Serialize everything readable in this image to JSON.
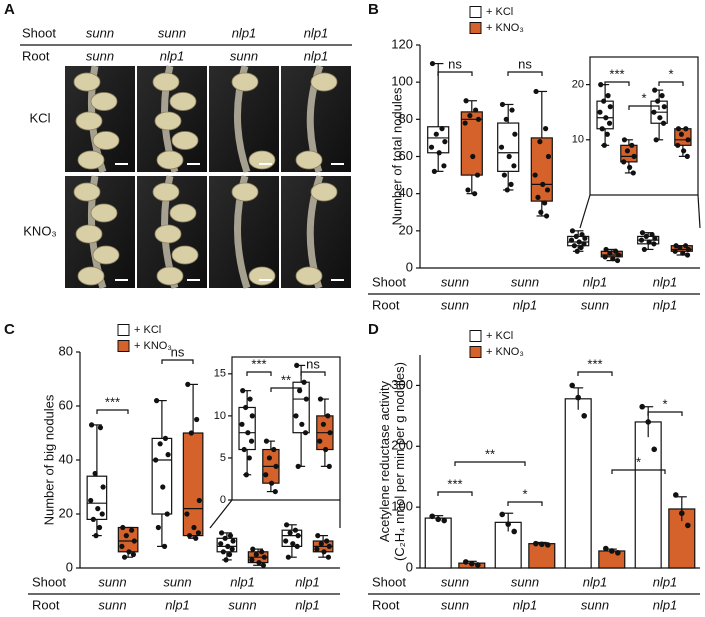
{
  "photo_panel": {
    "panel": "A",
    "row_labels": [
      "Shoot",
      "Root"
    ],
    "shoot": [
      "sunn",
      "sunn",
      "nlp1",
      "nlp1"
    ],
    "root": [
      "sunn",
      "nlp1",
      "sunn",
      "nlp1"
    ],
    "treatments": [
      "KCl",
      "KNO₃"
    ]
  },
  "chart_data": [
    {
      "type": "box",
      "panel": "B",
      "y_label": [
        "Number of total nodules"
      ],
      "row_labels": [
        "Shoot",
        "Root"
      ],
      "shoot": [
        "sunn",
        "sunn",
        "nlp1",
        "nlp1"
      ],
      "root": [
        "sunn",
        "nlp1",
        "sunn",
        "nlp1"
      ],
      "ylim": [
        0,
        120
      ],
      "yticks": [
        0,
        20,
        40,
        60,
        80,
        100,
        120
      ],
      "series": [
        {
          "name": "+ KCl",
          "color": "#ffffff",
          "boxes": [
            {
              "min": 52,
              "q1": 62,
              "median": 70,
              "q3": 76,
              "max": 110,
              "points": [
                110,
                75,
                72,
                68,
                65,
                62,
                55,
                52
              ]
            },
            {
              "min": 42,
              "q1": 52,
              "median": 62,
              "q3": 78,
              "max": 88,
              "points": [
                88,
                85,
                80,
                72,
                65,
                60,
                55,
                50,
                45,
                42
              ]
            },
            {
              "min": 9,
              "q1": 12,
              "median": 14,
              "q3": 17,
              "max": 20,
              "points": [
                20,
                18,
                17,
                16,
                15,
                14,
                13,
                12,
                11,
                9
              ]
            },
            {
              "min": 10,
              "q1": 13,
              "median": 15,
              "q3": 17,
              "max": 19,
              "points": [
                19,
                18,
                17,
                16,
                15,
                14,
                13,
                10
              ]
            }
          ]
        },
        {
          "name": "+ KNO₃",
          "color": "#d5622b",
          "boxes": [
            {
              "min": 40,
              "q1": 50,
              "median": 80,
              "q3": 84,
              "max": 90,
              "points": [
                90,
                85,
                82,
                80,
                78,
                60,
                50,
                42,
                40
              ]
            },
            {
              "min": 28,
              "q1": 36,
              "median": 45,
              "q3": 70,
              "max": 95,
              "points": [
                95,
                75,
                68,
                60,
                50,
                45,
                42,
                38,
                35,
                30,
                28
              ]
            },
            {
              "min": 4,
              "q1": 6,
              "median": 7,
              "q3": 9,
              "max": 10,
              "points": [
                10,
                9,
                8,
                7,
                6,
                5,
                4
              ]
            },
            {
              "min": 7,
              "q1": 9,
              "median": 10,
              "q3": 12,
              "max": 12,
              "points": [
                12,
                12,
                11,
                10,
                9,
                8,
                7
              ]
            }
          ]
        }
      ],
      "inset": {
        "ylim": [
          0,
          25
        ],
        "yticks": [
          10,
          20
        ]
      },
      "annotations": [
        "ns",
        "ns",
        "***",
        "*",
        "*"
      ]
    },
    {
      "type": "box",
      "panel": "C",
      "y_label": [
        "Number of big nodules"
      ],
      "row_labels": [
        "Shoot",
        "Root"
      ],
      "shoot": [
        "sunn",
        "sunn",
        "nlp1",
        "nlp1"
      ],
      "root": [
        "sunn",
        "nlp1",
        "sunn",
        "nlp1"
      ],
      "ylim": [
        0,
        80
      ],
      "yticks": [
        0,
        20,
        40,
        60,
        80
      ],
      "series": [
        {
          "name": "+ KCl",
          "color": "#ffffff",
          "boxes": [
            {
              "min": 12,
              "q1": 18,
              "median": 24,
              "q3": 34,
              "max": 53,
              "points": [
                53,
                52,
                35,
                30,
                25,
                22,
                20,
                18,
                15,
                12
              ]
            },
            {
              "min": 8,
              "q1": 20,
              "median": 40,
              "q3": 48,
              "max": 62,
              "points": [
                62,
                48,
                46,
                42,
                40,
                30,
                20,
                15,
                8
              ]
            },
            {
              "min": 3,
              "q1": 6,
              "median": 8,
              "q3": 11,
              "max": 13,
              "points": [
                13,
                12,
                11,
                10,
                9,
                8,
                7,
                6,
                5,
                3
              ]
            },
            {
              "min": 4,
              "q1": 8,
              "median": 12,
              "q3": 14,
              "max": 16,
              "points": [
                16,
                14,
                13,
                12,
                10,
                9,
                8,
                4
              ]
            }
          ]
        },
        {
          "name": "+ KNO₃",
          "color": "#d5622b",
          "boxes": [
            {
              "min": 4,
              "q1": 6,
              "median": 10,
              "q3": 15,
              "max": 15,
              "points": [
                15,
                14,
                12,
                10,
                8,
                6,
                5,
                4
              ]
            },
            {
              "min": 11,
              "q1": 12,
              "median": 22,
              "q3": 50,
              "max": 68,
              "points": [
                68,
                55,
                50,
                25,
                20,
                15,
                13,
                12,
                11
              ]
            },
            {
              "min": 1,
              "q1": 2,
              "median": 4,
              "q3": 6,
              "max": 7,
              "points": [
                7,
                6,
                5,
                4,
                3,
                2,
                1
              ]
            },
            {
              "min": 4,
              "q1": 6,
              "median": 8,
              "q3": 10,
              "max": 12,
              "points": [
                12,
                10,
                9,
                8,
                7,
                6,
                4
              ]
            }
          ]
        }
      ],
      "inset": {
        "ylim": [
          0,
          17
        ],
        "yticks": [
          0,
          5,
          10,
          15
        ]
      },
      "annotations": [
        "***",
        "ns",
        "***",
        "ns",
        "**"
      ]
    },
    {
      "type": "bar",
      "panel": "D",
      "y_label": [
        "Acetylene reductase activity",
        "(C₂H₄ nmol per min per g nodules)"
      ],
      "row_labels": [
        "Shoot",
        "Root"
      ],
      "shoot": [
        "sunn",
        "sunn",
        "nlp1",
        "nlp1"
      ],
      "root": [
        "sunn",
        "nlp1",
        "sunn",
        "nlp1"
      ],
      "ylim": [
        0,
        350
      ],
      "yticks": [
        0,
        100,
        200,
        300
      ],
      "series": [
        {
          "name": "+ KCl",
          "color": "#ffffff",
          "values": [
            82,
            75,
            278,
            240
          ],
          "errors": [
            4,
            15,
            18,
            25
          ],
          "points": [
            [
              85,
              80,
              78
            ],
            [
              88,
              72,
              60
            ],
            [
              300,
              280,
              250
            ],
            [
              265,
              240,
              195
            ]
          ]
        },
        {
          "name": "+ KNO₃",
          "color": "#d5622b",
          "values": [
            8,
            40,
            28,
            97
          ],
          "errors": [
            3,
            2,
            3,
            20
          ],
          "points": [
            [
              10,
              7,
              5
            ],
            [
              40,
              39,
              38
            ],
            [
              32,
              28,
              25
            ],
            [
              120,
              90,
              70
            ]
          ]
        }
      ],
      "annotations": [
        "***",
        "**",
        "*",
        "***",
        "*",
        "*"
      ]
    }
  ]
}
